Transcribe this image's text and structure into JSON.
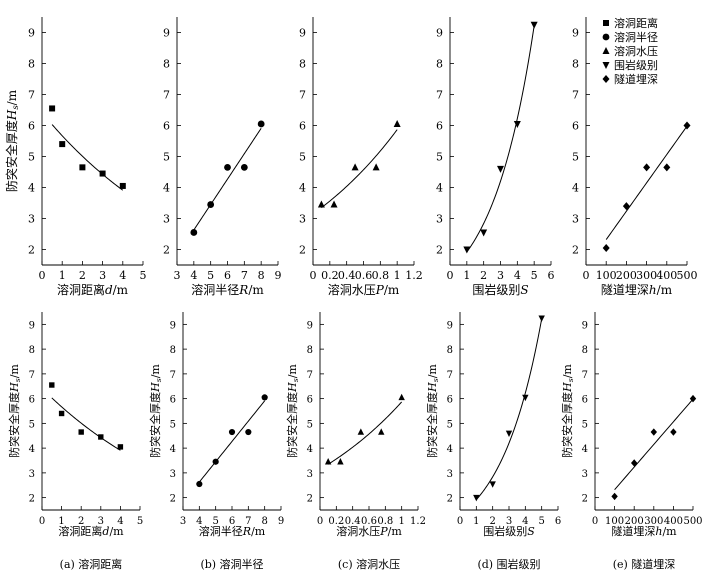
{
  "shared": {
    "ylabel": "防突安全厚度H_s/m",
    "ylim": [
      1.5,
      9.5
    ],
    "yticks": [
      2,
      3,
      4,
      5,
      6,
      7,
      8,
      9
    ]
  },
  "chart_data": [
    {
      "type": "scatter",
      "row": "top",
      "xlabel": "溶洞距离d/m",
      "xlim": [
        0,
        5
      ],
      "xticks": [
        0,
        1,
        2,
        3,
        4,
        5
      ],
      "marker": "square",
      "x": [
        0.5,
        1,
        2,
        3,
        4
      ],
      "y": [
        6.55,
        5.4,
        4.65,
        4.45,
        4.05
      ],
      "fit": "exponential"
    },
    {
      "type": "scatter",
      "row": "top",
      "xlabel": "溶洞半径R/m",
      "xlim": [
        3,
        9
      ],
      "xticks": [
        3,
        4,
        5,
        6,
        7,
        8,
        9
      ],
      "marker": "circle",
      "x": [
        4,
        5,
        6,
        7,
        8
      ],
      "y": [
        2.55,
        3.45,
        4.65,
        4.65,
        6.05
      ],
      "fit": "linear"
    },
    {
      "type": "scatter",
      "row": "top",
      "xlabel": "溶洞水压P/m",
      "xlim": [
        0,
        1.2
      ],
      "xticks": [
        0,
        0.2,
        0.4,
        0.6,
        0.8,
        1.0,
        1.2
      ],
      "marker": "triangle",
      "x": [
        0.1,
        0.25,
        0.5,
        0.75,
        1.0
      ],
      "y": [
        3.45,
        3.45,
        4.65,
        4.65,
        6.05
      ],
      "fit": "exponential"
    },
    {
      "type": "scatter",
      "row": "top",
      "xlabel": "围岩级别S",
      "xlim": [
        0,
        6
      ],
      "xticks": [
        0,
        1,
        2,
        3,
        4,
        5,
        6
      ],
      "marker": "triangle-down",
      "x": [
        1,
        2,
        3,
        4,
        5
      ],
      "y": [
        2.0,
        2.55,
        4.6,
        6.05,
        9.25
      ],
      "fit": "exponential"
    },
    {
      "type": "scatter",
      "row": "top",
      "xlabel": "隧道埋深h/m",
      "xlim": [
        0,
        500
      ],
      "xticks": [
        0,
        100,
        200,
        300,
        400,
        500
      ],
      "marker": "diamond",
      "x": [
        100,
        200,
        300,
        400,
        500
      ],
      "y": [
        2.05,
        3.4,
        4.65,
        4.65,
        6.0
      ],
      "fit": "linear"
    },
    {
      "type": "scatter",
      "row": "bottom",
      "xlabel": "溶洞距离d/m",
      "caption": "(a) 溶洞距离",
      "xlim": [
        0,
        5
      ],
      "xticks": [
        0,
        1,
        2,
        3,
        4,
        5
      ],
      "marker": "square",
      "x": [
        0.5,
        1,
        2,
        3,
        4
      ],
      "y": [
        6.55,
        5.4,
        4.65,
        4.45,
        4.05
      ],
      "fit": "exponential"
    },
    {
      "type": "scatter",
      "row": "bottom",
      "xlabel": "溶洞半径R/m",
      "caption": "(b) 溶洞半径",
      "xlim": [
        3,
        9
      ],
      "xticks": [
        3,
        4,
        5,
        6,
        7,
        8,
        9
      ],
      "marker": "circle",
      "x": [
        4,
        5,
        6,
        7,
        8
      ],
      "y": [
        2.55,
        3.45,
        4.65,
        4.65,
        6.05
      ],
      "fit": "linear"
    },
    {
      "type": "scatter",
      "row": "bottom",
      "xlabel": "溶洞水压P/m",
      "caption": "(c) 溶洞水压",
      "xlim": [
        0,
        1.2
      ],
      "xticks": [
        0,
        0.2,
        0.4,
        0.6,
        0.8,
        1.0,
        1.2
      ],
      "marker": "triangle",
      "x": [
        0.1,
        0.25,
        0.5,
        0.75,
        1.0
      ],
      "y": [
        3.45,
        3.45,
        4.65,
        4.65,
        6.05
      ],
      "fit": "exponential"
    },
    {
      "type": "scatter",
      "row": "bottom",
      "xlabel": "围岩级别S",
      "caption": "(d) 围岩级别",
      "xlim": [
        0,
        6
      ],
      "xticks": [
        0,
        1,
        2,
        3,
        4,
        5,
        6
      ],
      "marker": "triangle-down",
      "x": [
        1,
        2,
        3,
        4,
        5
      ],
      "y": [
        2.0,
        2.55,
        4.6,
        6.05,
        9.25
      ],
      "fit": "exponential"
    },
    {
      "type": "scatter",
      "row": "bottom",
      "xlabel": "隧道埋深h/m",
      "caption": "(e) 隧道埋深",
      "xlim": [
        0,
        500
      ],
      "xticks": [
        0,
        100,
        200,
        300,
        400,
        500
      ],
      "marker": "diamond",
      "x": [
        100,
        200,
        300,
        400,
        500
      ],
      "y": [
        2.05,
        3.4,
        4.65,
        4.65,
        6.0
      ],
      "fit": "linear"
    }
  ],
  "legend": {
    "position": "top-right",
    "entries": [
      {
        "marker": "square",
        "label": "溶洞距离"
      },
      {
        "marker": "circle",
        "label": "溶洞半径"
      },
      {
        "marker": "triangle",
        "label": "溶洞水压"
      },
      {
        "marker": "triangle-down",
        "label": "围岩级别"
      },
      {
        "marker": "diamond",
        "label": "隧道埋深"
      }
    ]
  }
}
